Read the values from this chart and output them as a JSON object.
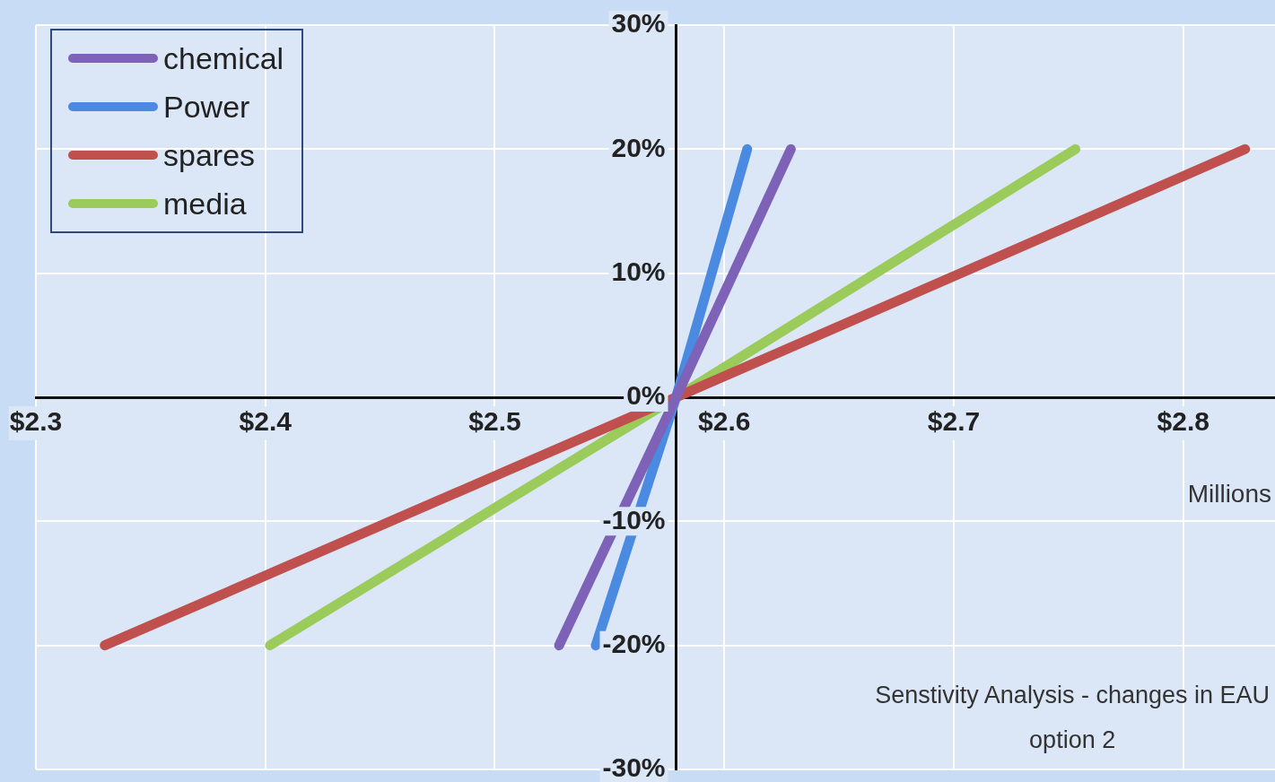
{
  "chart_data": {
    "type": "line",
    "xlabel": "Millions",
    "annotations": [
      "Senstivity Analysis - changes in EAU",
      "option 2"
    ],
    "xlim": [
      2.3,
      2.84
    ],
    "xticks": [
      {
        "value": 2.3,
        "label": "$2.3"
      },
      {
        "value": 2.4,
        "label": "$2.4"
      },
      {
        "value": 2.5,
        "label": "$2.5"
      },
      {
        "value": 2.6,
        "label": "$2.6"
      },
      {
        "value": 2.7,
        "label": "$2.7"
      },
      {
        "value": 2.8,
        "label": "$2.8"
      }
    ],
    "ylim": [
      -30,
      30
    ],
    "yticks": [
      {
        "value": -30,
        "label": "-30%"
      },
      {
        "value": -20,
        "label": "-20%"
      },
      {
        "value": -10,
        "label": "-10%"
      },
      {
        "value": 0,
        "label": "0%"
      },
      {
        "value": 10,
        "label": "10%"
      },
      {
        "value": 20,
        "label": "20%"
      },
      {
        "value": 30,
        "label": "30%"
      }
    ],
    "grid": true,
    "legend": "top left",
    "marker": "none",
    "line_style": "solid",
    "series": [
      {
        "name": "chemical",
        "color": "#7e62b8",
        "x": [
          2.528,
          2.579,
          2.629
        ],
        "values": [
          -20,
          0,
          20
        ]
      },
      {
        "name": "Power",
        "color": "#4a8ae0",
        "x": [
          2.544,
          2.579,
          2.61
        ],
        "values": [
          -20,
          0,
          20
        ]
      },
      {
        "name": "spares",
        "color": "#c0504d",
        "x": [
          2.33,
          2.579,
          2.827
        ],
        "values": [
          -20,
          0,
          20
        ]
      },
      {
        "name": "media",
        "color": "#9bcb5b",
        "x": [
          2.402,
          2.579,
          2.753
        ],
        "values": [
          -20,
          0,
          20
        ]
      }
    ]
  }
}
